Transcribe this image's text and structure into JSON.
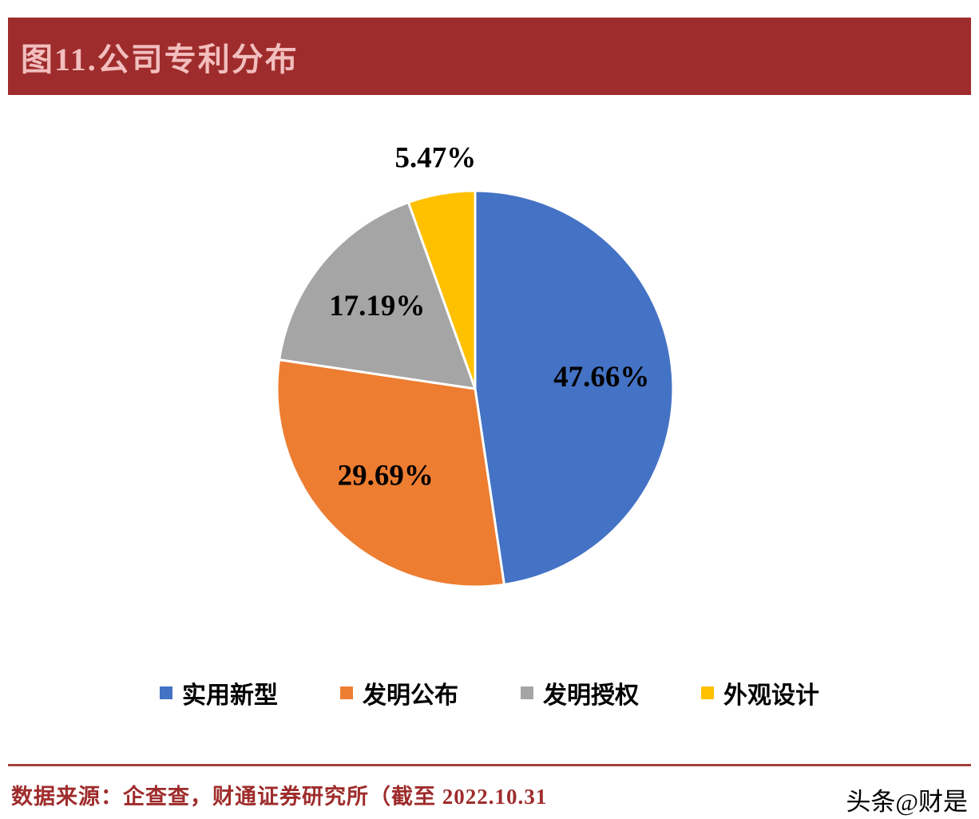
{
  "header": {
    "title": "图11.公司专利分布"
  },
  "chart_data": {
    "type": "pie",
    "title": "图11.公司专利分布",
    "slices": [
      {
        "label": "实用新型",
        "value": 47.66,
        "color": "#4472C4"
      },
      {
        "label": "发明公布",
        "value": 29.69,
        "color": "#ED7D31"
      },
      {
        "label": "发明授权",
        "value": 17.19,
        "color": "#A5A5A5"
      },
      {
        "label": "外观设计",
        "value": 5.47,
        "color": "#FFC000"
      }
    ],
    "start_angle_deg": 0,
    "direction": "clockwise",
    "label_format": "percent",
    "legend_position": "bottom"
  },
  "footer": {
    "source": "数据来源：企查查，财通证券研究所（截至 2022.10.31",
    "watermark": "头条@财是"
  },
  "colors": {
    "header_bg": "#9F2C2C",
    "header_text": "#F2BEBE",
    "accent_line": "#A5413B",
    "source_text": "#9F2C2C",
    "slice_border": "#FFFFFF"
  }
}
